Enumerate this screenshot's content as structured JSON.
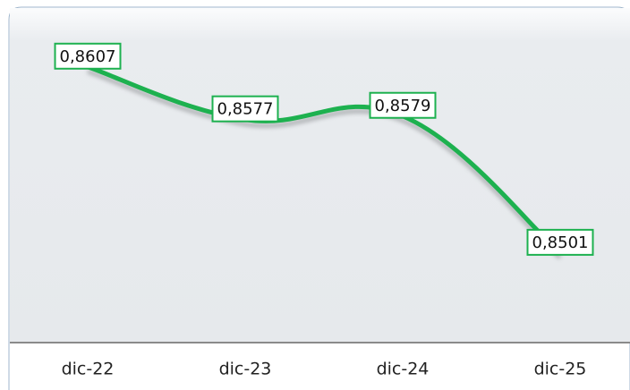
{
  "chart_data": {
    "type": "line",
    "categories": [
      "dic-22",
      "dic-23",
      "dic-24",
      "dic-25"
    ],
    "series": [
      {
        "name": null,
        "color": "#1db14f",
        "values": [
          0.8607,
          0.8577,
          0.8579,
          0.8501
        ],
        "value_labels": [
          "0,8607",
          "0,8577",
          "0,8579",
          "0,8501"
        ]
      }
    ],
    "ylim": [
      0.845,
      0.864
    ]
  }
}
